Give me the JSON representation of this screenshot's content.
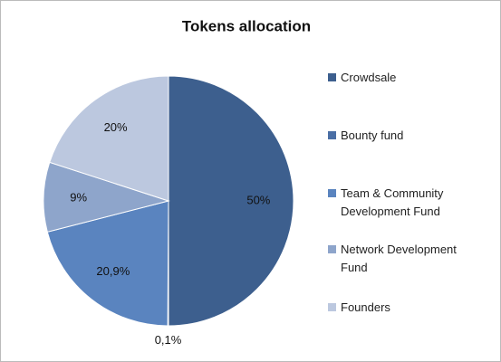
{
  "chart_data": {
    "type": "pie",
    "title": "Tokens allocation",
    "categories": [
      "Crowdsale",
      "Bounty fund",
      "Team & Community Development Fund",
      "Network Development Fund",
      "Founders"
    ],
    "values": [
      50,
      0.1,
      20.9,
      9,
      20
    ],
    "value_labels": [
      "50%",
      "0,1%",
      "20,9%",
      "9%",
      "20%"
    ],
    "colors": [
      "#3d5f8e",
      "#4a6fa5",
      "#5a84bf",
      "#8ea5cb",
      "#bcc8df"
    ],
    "legend": "right"
  }
}
